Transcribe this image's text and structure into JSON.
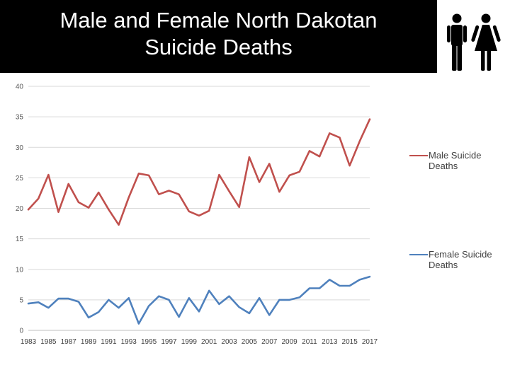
{
  "slide": {
    "title_line1": "Male and Female North Dakotan",
    "title_line2": "Suicide Deaths"
  },
  "icons": [
    "male-figure-icon",
    "female-figure-icon"
  ],
  "chart_data": {
    "type": "line",
    "x": [
      1983,
      1984,
      1985,
      1986,
      1987,
      1988,
      1989,
      1990,
      1991,
      1992,
      1993,
      1994,
      1995,
      1996,
      1997,
      1998,
      1999,
      2000,
      2001,
      2002,
      2003,
      2004,
      2005,
      2006,
      2007,
      2008,
      2009,
      2010,
      2011,
      2012,
      2013,
      2014,
      2015,
      2016,
      2017
    ],
    "x_tick_labels": [
      "1983",
      "1985",
      "1987",
      "1989",
      "1991",
      "1993",
      "1995",
      "1997",
      "1999",
      "2001",
      "2003",
      "2005",
      "2007",
      "2009",
      "2011",
      "2013",
      "2015",
      "2017"
    ],
    "y_tick_labels": [
      "0",
      "5",
      "10",
      "15",
      "20",
      "25",
      "30",
      "35",
      "40"
    ],
    "ylim": [
      0,
      40
    ],
    "grid": true,
    "legend_position": "right",
    "series": [
      {
        "name": "Male Suicide Deaths",
        "name_lines": [
          "Male Suicide",
          "Deaths"
        ],
        "color": "#C0504D",
        "values": [
          19.8,
          21.6,
          25.5,
          19.4,
          24.0,
          21.0,
          20.1,
          22.6,
          19.8,
          17.3,
          21.8,
          25.7,
          25.4,
          22.3,
          22.9,
          22.3,
          19.5,
          18.8,
          19.6,
          25.5,
          22.8,
          20.2,
          28.4,
          24.3,
          27.3,
          22.7,
          25.4,
          26.0,
          29.4,
          28.5,
          32.3,
          31.6,
          27.0,
          31.0,
          34.6
        ]
      },
      {
        "name": "Female Suicide Deaths",
        "name_lines": [
          "Female Suicide",
          "Deaths"
        ],
        "color": "#4F81BD",
        "values": [
          4.4,
          4.6,
          3.7,
          5.2,
          5.2,
          4.7,
          2.1,
          3.0,
          5.0,
          3.7,
          5.3,
          1.1,
          4.0,
          5.6,
          5.0,
          2.2,
          5.3,
          3.1,
          6.5,
          4.3,
          5.6,
          3.8,
          2.8,
          5.3,
          2.5,
          5.0,
          5.0,
          5.4,
          6.9,
          6.9,
          8.3,
          7.3,
          7.3,
          8.3,
          8.8
        ]
      }
    ]
  }
}
